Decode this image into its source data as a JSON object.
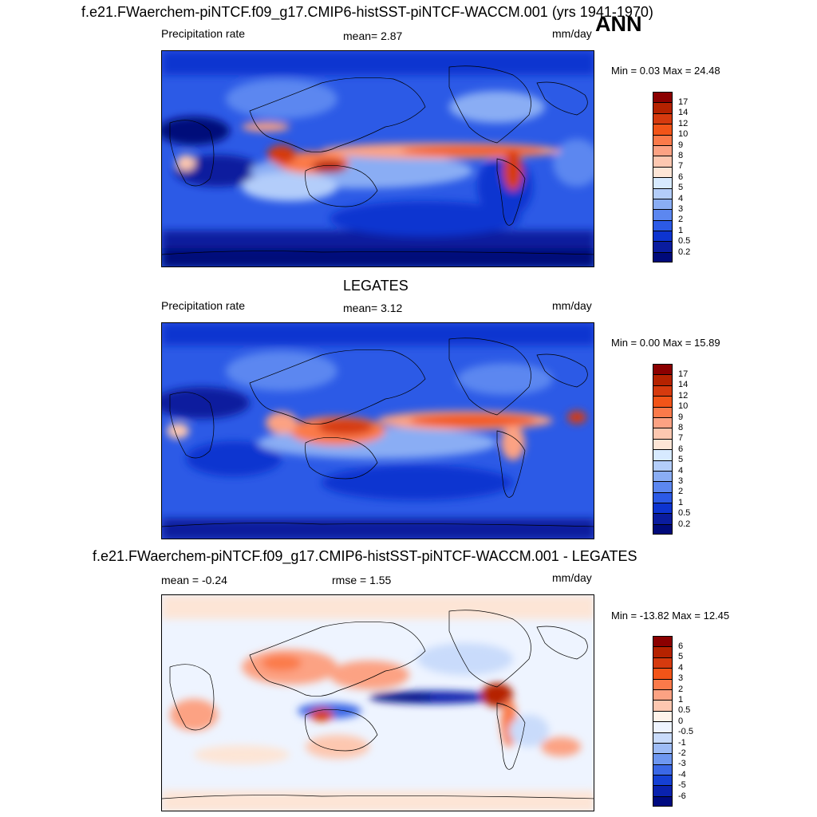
{
  "header": {
    "title": "f.e21.FWaerchem-piNTCF.f09_g17.CMIP6-histSST-piNTCF-WACCM.001 (yrs 1941-1970)",
    "season": "ANN"
  },
  "panels": [
    {
      "id": "model",
      "center_title": "",
      "left_label": "Precipitation rate",
      "mid_label": "mean=   2.87",
      "units": "mm/day",
      "minmax": "Min =   0.03 Max =  24.48",
      "levels": [
        "17",
        "14",
        "12",
        "10",
        "9",
        "8",
        "7",
        "6",
        "5",
        "4",
        "3",
        "2",
        "1",
        "0.5",
        "0.2"
      ],
      "colors": [
        "#8b0000",
        "#b52200",
        "#d63a0e",
        "#f25418",
        "#fb7a4a",
        "#fca283",
        "#fdc7b0",
        "#fde5d6",
        "#d7eaff",
        "#b3cdfa",
        "#8aadf4",
        "#5c87f0",
        "#2c5ae6",
        "#0d34d0",
        "#0a1c9e",
        "#000a7a"
      ]
    },
    {
      "id": "obs",
      "center_title": "LEGATES",
      "left_label": "Precipitation rate",
      "mid_label": "mean=   3.12",
      "units": "mm/day",
      "minmax": "Min =   0.00 Max =  15.89",
      "levels": [
        "17",
        "14",
        "12",
        "10",
        "9",
        "8",
        "7",
        "6",
        "5",
        "4",
        "3",
        "2",
        "1",
        "0.5",
        "0.2"
      ],
      "colors": [
        "#8b0000",
        "#b52200",
        "#d63a0e",
        "#f25418",
        "#fb7a4a",
        "#fca283",
        "#fdc7b0",
        "#fde5d6",
        "#d7eaff",
        "#b3cdfa",
        "#8aadf4",
        "#5c87f0",
        "#2c5ae6",
        "#0d34d0",
        "#0a1c9e",
        "#000a7a"
      ]
    },
    {
      "id": "diff",
      "center_title": "f.e21.FWaerchem-piNTCF.f09_g17.CMIP6-histSST-piNTCF-WACCM.001 - LEGATES",
      "left_label": "mean =  -0.24",
      "mid_label": "rmse =   1.55",
      "units": "mm/day",
      "minmax": "Min = -13.82 Max =  12.45",
      "levels": [
        "6",
        "5",
        "4",
        "3",
        "2",
        "1",
        "0.5",
        "0",
        "-0.5",
        "-1",
        "-2",
        "-3",
        "-4",
        "-5",
        "-6"
      ],
      "colors": [
        "#8b0000",
        "#b52200",
        "#d63a0e",
        "#f25418",
        "#fb7a4a",
        "#fca283",
        "#fdc7b0",
        "#fff3ea",
        "#eef4ff",
        "#c9dbfb",
        "#9ebcf6",
        "#6e97f0",
        "#3b68e6",
        "#1540d4",
        "#0a22ae",
        "#000a80"
      ]
    }
  ]
}
